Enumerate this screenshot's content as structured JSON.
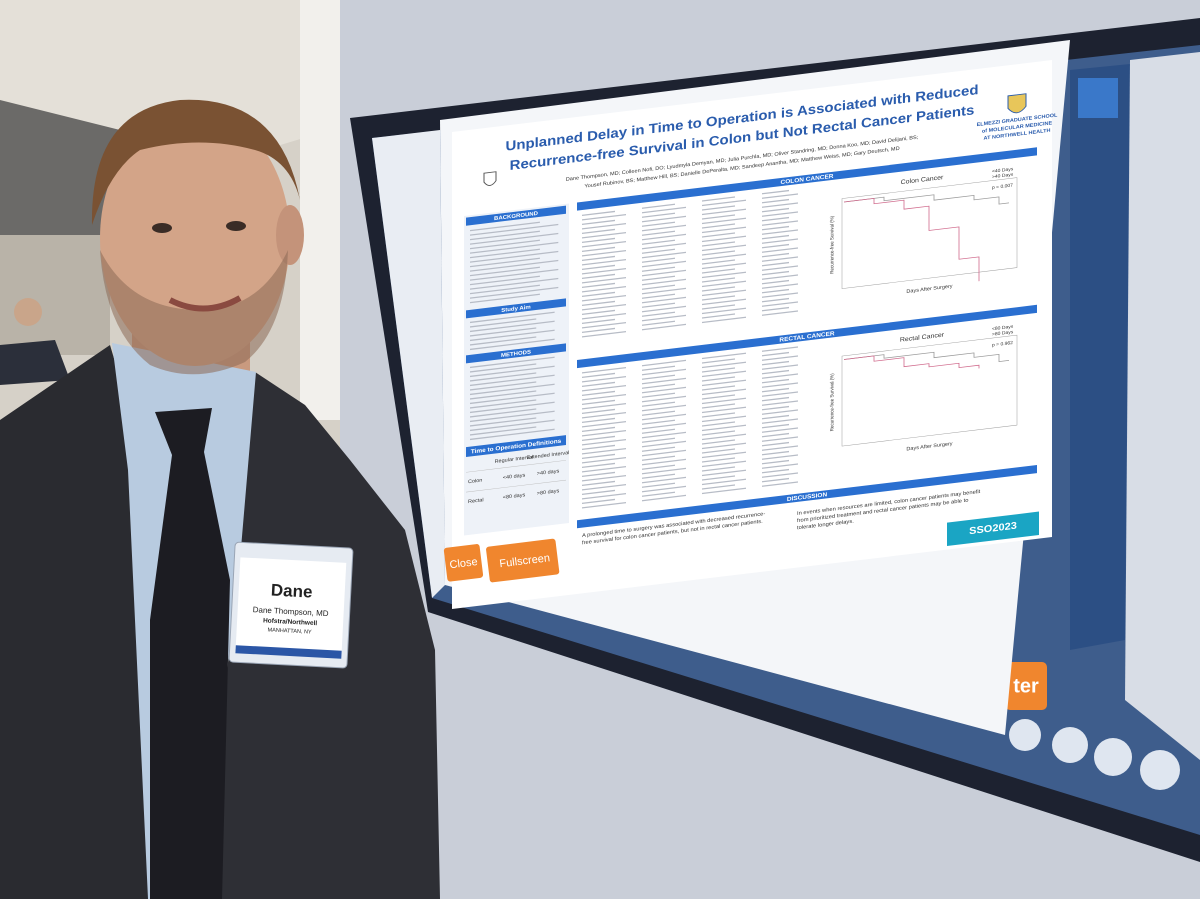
{
  "poster": {
    "title": [
      "Unplanned Delay in Time to Operation is Associated with Reduced",
      "Recurrence-free Survival in Colon but Not Rectal Cancer Patients"
    ],
    "authors": [
      "Dane Thompson, MD; Colleen Nofi, DO; Lyudmyla Demyan, MD; Julia Purchla, MD; Oliver Standring, MD; Donna Koo, MD; David Delijani, BS;",
      "Yousef Rubinov, BS; Matthew Hill, BS; Danielle DePeralta, MD; Sandeep Anantha, MD; Matthew Weiss, MD; Gary Deutsch, MD"
    ],
    "school": [
      "ELMEZZI GRADUATE SCHOOL",
      "of MOLECULAR MEDICINE",
      "AT NORTHWELL HEALTH"
    ],
    "left_headings": [
      "BACKGROUND",
      "Study Aim",
      "METHODS"
    ],
    "definitions": {
      "title": "Time to Operation Definitions",
      "header": [
        "Regular Interval",
        "Extended Interval"
      ],
      "rows": [
        [
          "Colon",
          "<40 days",
          ">40 days"
        ],
        [
          "Rectal",
          "<80 days",
          ">80 days"
        ]
      ]
    },
    "sections": [
      "COLON CANCER",
      "RECTAL CANCER"
    ],
    "charts": [
      {
        "title": "Colon Cancer",
        "legend": [
          "<40 Days",
          ">40 Days"
        ],
        "p": "p = 0.007",
        "ylabel": "Recurrence-free Survival (%)",
        "xlabel": "Days After Surgery"
      },
      {
        "title": "Rectal Cancer",
        "legend": [
          "<80 Days",
          ">80 Days"
        ],
        "p": "p = 0.962",
        "ylabel": "Recurrence-free Survival (%)",
        "xlabel": "Days After Surgery"
      }
    ],
    "discussion": {
      "title": "DISCUSSION",
      "left": [
        "A prolonged time to surgery was associated with decreased recurrence-",
        "free survival for colon cancer patients, but not in rectal cancer patients."
      ],
      "right": [
        "In events when resources are limited, colon cancer patients may benefit",
        "from prioritized treatment and rectal cancer patients may be able to",
        "tolerate longer delays."
      ]
    },
    "conference": "SSO2023"
  },
  "buttons": [
    "Close",
    "Fullscreen"
  ],
  "background_button": "ter",
  "badge": {
    "first_name": "Dane",
    "name": "Dane Thompson, MD",
    "affiliation": "Hofstra/Northwell",
    "location": "MANHATTAN, NY"
  }
}
